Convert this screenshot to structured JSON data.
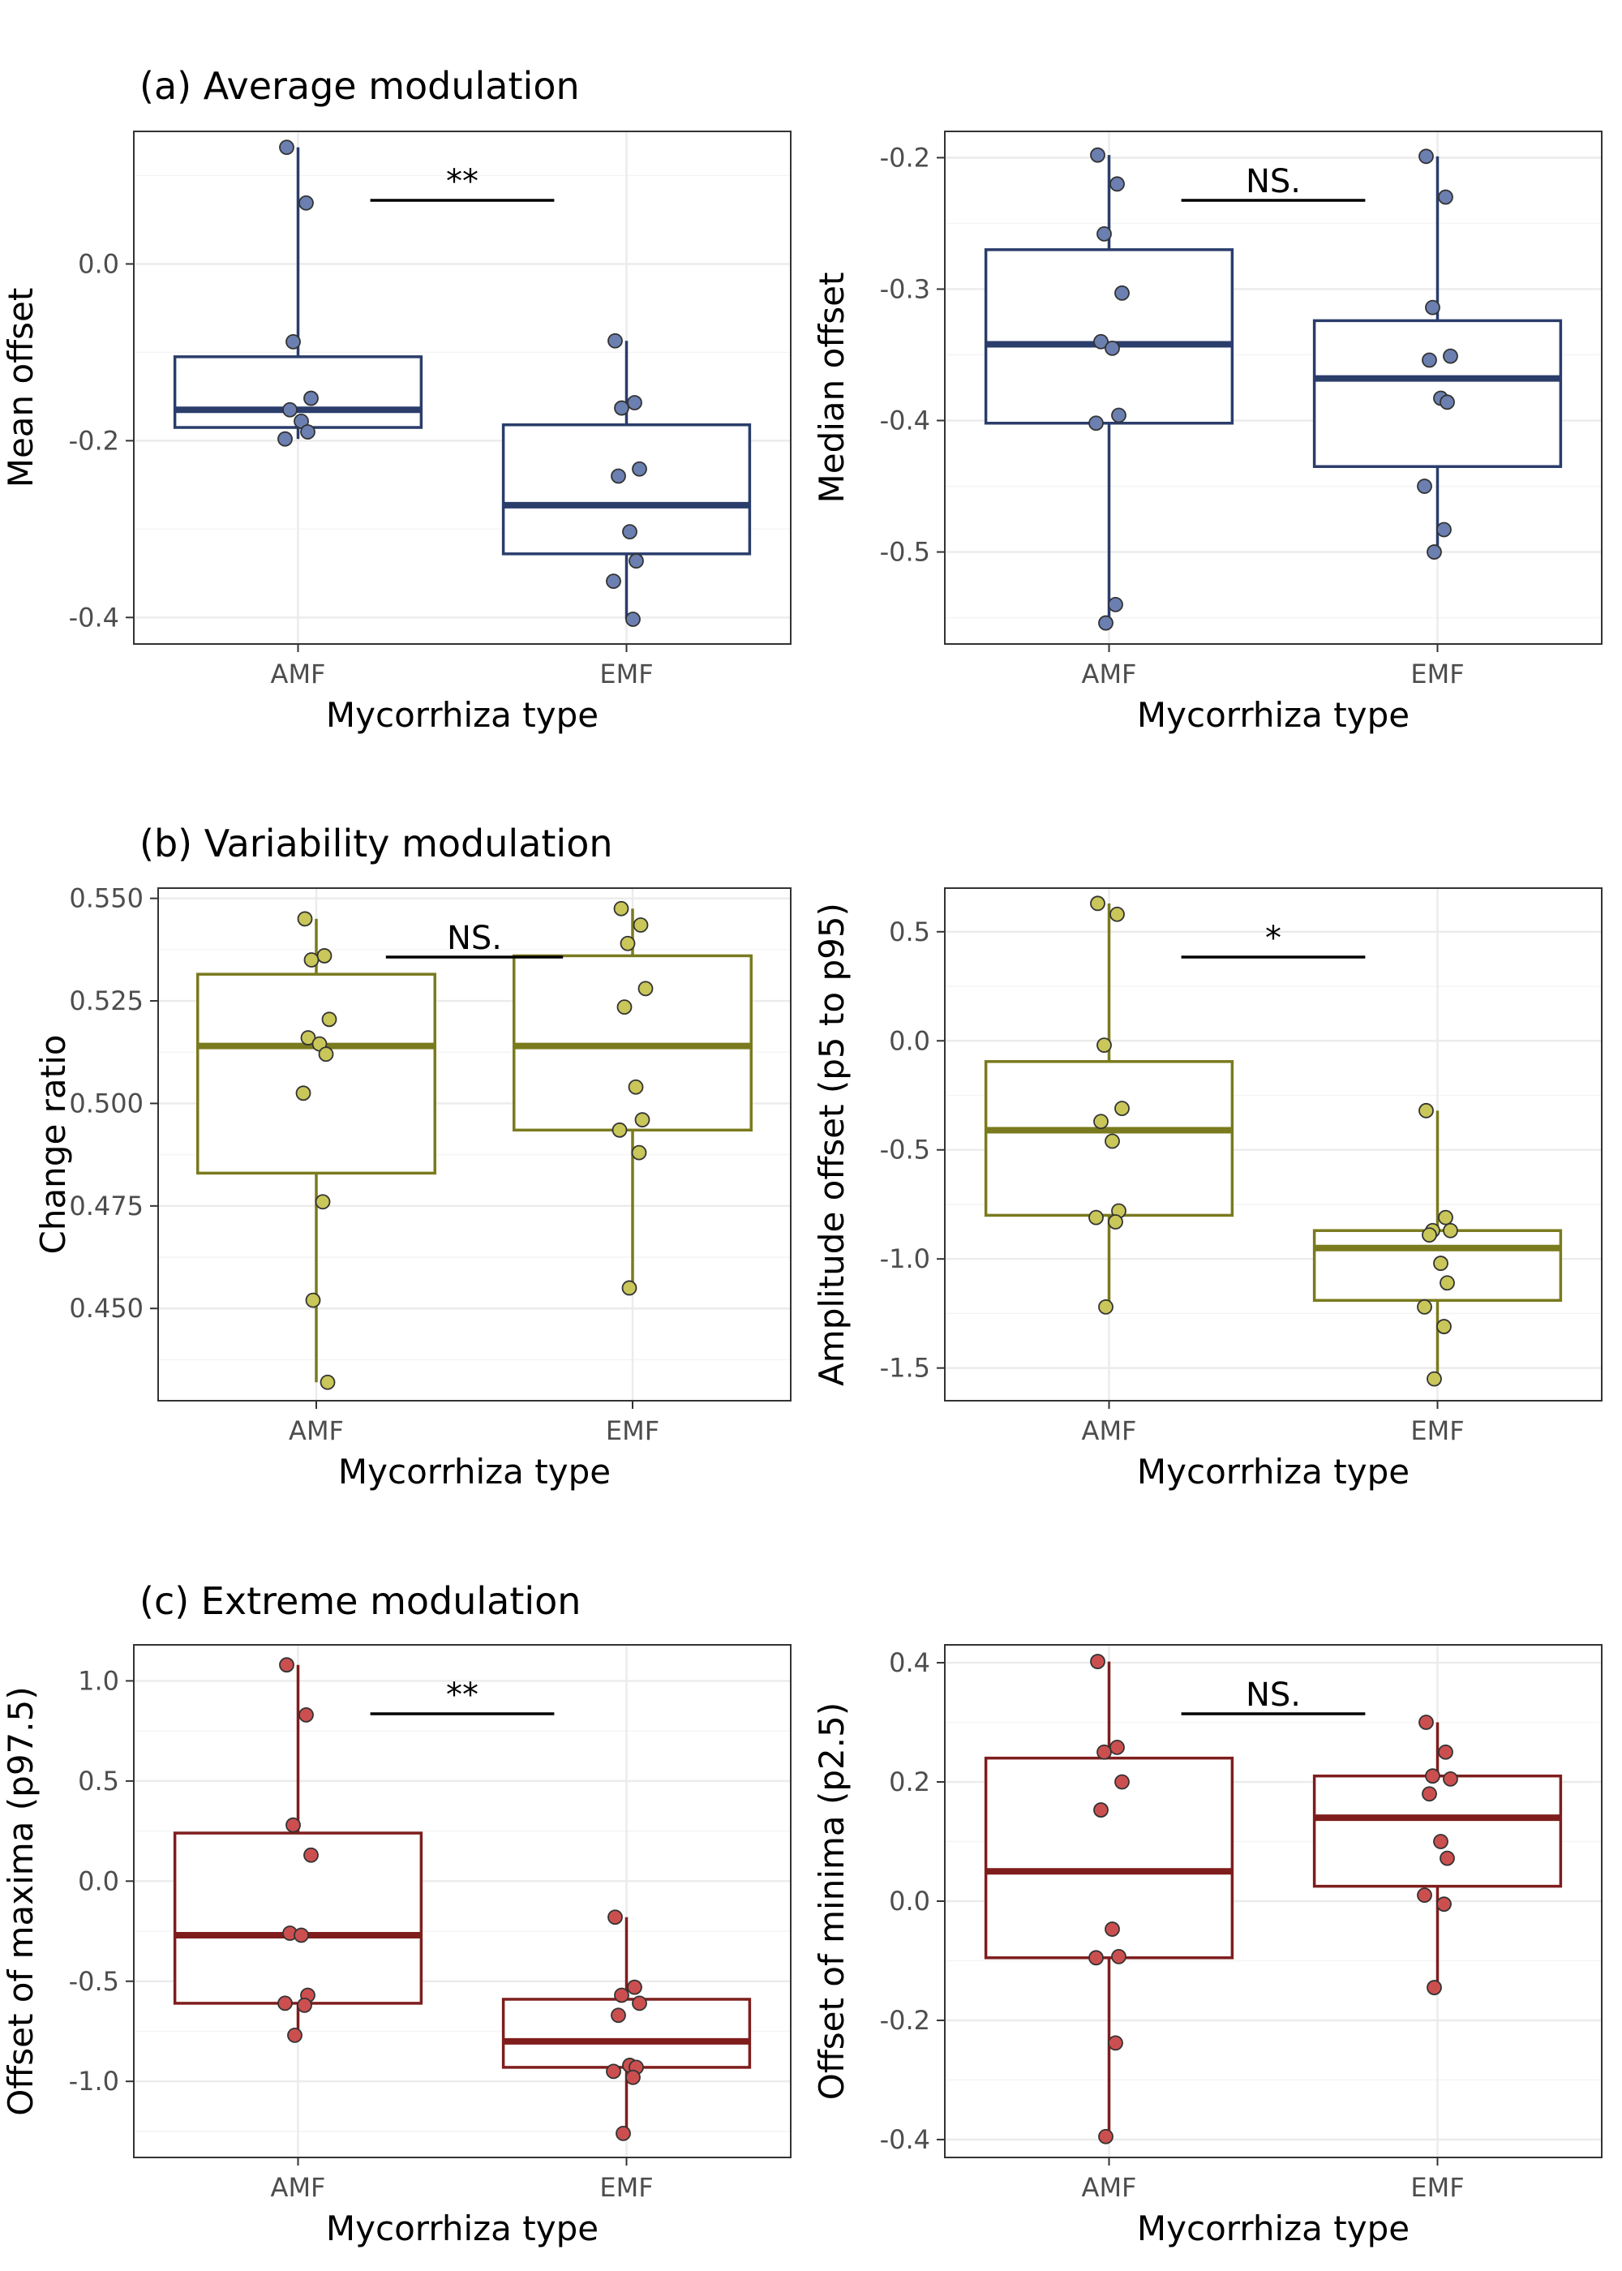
{
  "sections": [
    {
      "title": "(a) Average modulation"
    },
    {
      "title": "(b) Variability modulation"
    },
    {
      "title": "(c) Extreme modulation"
    }
  ],
  "colors": {
    "section_a": {
      "line": "#2a3d6b",
      "point": "#6b7fb0"
    },
    "section_b": {
      "line": "#7a7a1e",
      "point": "#c9c65a"
    },
    "section_c": {
      "line": "#7f1d1d",
      "point": "#cc4f4f"
    }
  },
  "chart_data": [
    {
      "type": "box",
      "section": 0,
      "xlabel": "Mycorrhiza type",
      "ylabel": "Mean offset",
      "categories": [
        "AMF",
        "EMF"
      ],
      "ylim": [
        -0.43,
        0.15
      ],
      "yticks": [
        0.0,
        -0.2,
        -0.4
      ],
      "ytick_labels": [
        "0.0",
        "-0.2",
        "-0.4"
      ],
      "grid": true,
      "significance": "**",
      "groups": [
        {
          "name": "AMF",
          "q1": -0.185,
          "median": -0.165,
          "q3": -0.105,
          "whisker_low": -0.198,
          "whisker_high": 0.132,
          "points": [
            0.132,
            0.069,
            -0.088,
            -0.152,
            -0.165,
            -0.178,
            -0.19,
            -0.198
          ]
        },
        {
          "name": "EMF",
          "q1": -0.328,
          "median": -0.273,
          "q3": -0.182,
          "whisker_low": -0.402,
          "whisker_high": -0.087,
          "points": [
            -0.087,
            -0.157,
            -0.163,
            -0.232,
            -0.24,
            -0.303,
            -0.336,
            -0.359,
            -0.402
          ]
        }
      ]
    },
    {
      "type": "box",
      "section": 0,
      "xlabel": "Mycorrhiza type",
      "ylabel": "Median offset",
      "categories": [
        "AMF",
        "EMF"
      ],
      "ylim": [
        -0.57,
        -0.18
      ],
      "yticks": [
        -0.2,
        -0.3,
        -0.4,
        -0.5
      ],
      "ytick_labels": [
        "-0.2",
        "-0.3",
        "-0.4",
        "-0.5"
      ],
      "grid": true,
      "significance": "NS.",
      "groups": [
        {
          "name": "AMF",
          "q1": -0.402,
          "median": -0.342,
          "q3": -0.27,
          "whisker_low": -0.554,
          "whisker_high": -0.198,
          "points": [
            -0.198,
            -0.22,
            -0.258,
            -0.303,
            -0.34,
            -0.345,
            -0.396,
            -0.402,
            -0.54,
            -0.554
          ]
        },
        {
          "name": "EMF",
          "q1": -0.435,
          "median": -0.368,
          "q3": -0.324,
          "whisker_low": -0.5,
          "whisker_high": -0.199,
          "points": [
            -0.199,
            -0.23,
            -0.314,
            -0.351,
            -0.354,
            -0.383,
            -0.386,
            -0.45,
            -0.483,
            -0.5
          ]
        }
      ]
    },
    {
      "type": "box",
      "section": 1,
      "xlabel": "Mycorrhiza type",
      "ylabel": "Change ratio",
      "categories": [
        "AMF",
        "EMF"
      ],
      "ylim": [
        0.4275,
        0.5525
      ],
      "yticks": [
        0.55,
        0.525,
        0.5,
        0.475,
        0.45
      ],
      "ytick_labels": [
        "0.550",
        "0.525",
        "0.500",
        "0.475",
        "0.450"
      ],
      "grid": true,
      "significance": "NS.",
      "groups": [
        {
          "name": "AMF",
          "q1": 0.483,
          "median": 0.514,
          "q3": 0.5315,
          "whisker_low": 0.432,
          "whisker_high": 0.545,
          "points": [
            0.545,
            0.536,
            0.535,
            0.5205,
            0.516,
            0.5145,
            0.512,
            0.5025,
            0.476,
            0.452,
            0.432
          ]
        },
        {
          "name": "EMF",
          "q1": 0.4935,
          "median": 0.514,
          "q3": 0.536,
          "whisker_low": 0.455,
          "whisker_high": 0.5475,
          "points": [
            0.5475,
            0.5435,
            0.539,
            0.528,
            0.5235,
            0.504,
            0.496,
            0.4935,
            0.488,
            0.455
          ]
        }
      ]
    },
    {
      "type": "box",
      "section": 1,
      "xlabel": "Mycorrhiza type",
      "ylabel": "Amplitude offset (p5 to p95)",
      "categories": [
        "AMF",
        "EMF"
      ],
      "ylim": [
        -1.65,
        0.7
      ],
      "yticks": [
        0.5,
        0.0,
        -0.5,
        -1.0,
        -1.5
      ],
      "ytick_labels": [
        "0.5",
        "0.0",
        "-0.5",
        "-1.0",
        "-1.5"
      ],
      "grid": true,
      "significance": "*",
      "groups": [
        {
          "name": "AMF",
          "q1": -0.8,
          "median": -0.41,
          "q3": -0.095,
          "whisker_low": -1.22,
          "whisker_high": 0.63,
          "points": [
            0.63,
            0.58,
            -0.02,
            -0.31,
            -0.37,
            -0.46,
            -0.78,
            -0.81,
            -0.83,
            -1.22
          ]
        },
        {
          "name": "EMF",
          "q1": -1.19,
          "median": -0.95,
          "q3": -0.87,
          "whisker_low": -1.55,
          "whisker_high": -0.32,
          "points": [
            -0.32,
            -0.81,
            -0.87,
            -0.87,
            -0.89,
            -1.02,
            -1.11,
            -1.22,
            -1.31,
            -1.55
          ]
        }
      ]
    },
    {
      "type": "box",
      "section": 2,
      "xlabel": "Mycorrhiza type",
      "ylabel": "Offset of maxima (p97.5)",
      "categories": [
        "AMF",
        "EMF"
      ],
      "ylim": [
        -1.38,
        1.18
      ],
      "yticks": [
        1.0,
        0.5,
        0.0,
        -0.5,
        -1.0
      ],
      "ytick_labels": [
        "1.0",
        "0.5",
        "0.0",
        "-0.5",
        "-1.0"
      ],
      "grid": true,
      "significance": "**",
      "groups": [
        {
          "name": "AMF",
          "q1": -0.61,
          "median": -0.27,
          "q3": 0.24,
          "whisker_low": -0.77,
          "whisker_high": 1.08,
          "points": [
            1.08,
            0.83,
            0.28,
            0.13,
            -0.26,
            -0.27,
            -0.57,
            -0.61,
            -0.62,
            -0.77
          ]
        },
        {
          "name": "EMF",
          "q1": -0.93,
          "median": -0.8,
          "q3": -0.59,
          "whisker_low": -1.26,
          "whisker_high": -0.18,
          "points": [
            -0.18,
            -0.53,
            -0.57,
            -0.61,
            -0.67,
            -0.92,
            -0.93,
            -0.95,
            -0.98,
            -1.26
          ]
        }
      ]
    },
    {
      "type": "box",
      "section": 2,
      "xlabel": "Mycorrhiza type",
      "ylabel": "Offset of minima (p2.5)",
      "categories": [
        "AMF",
        "EMF"
      ],
      "ylim": [
        -0.43,
        0.43
      ],
      "yticks": [
        0.4,
        0.2,
        0.0,
        -0.2,
        -0.4
      ],
      "ytick_labels": [
        "0.4",
        "0.2",
        "0.0",
        "-0.2",
        "-0.4"
      ],
      "grid": true,
      "significance": "NS.",
      "groups": [
        {
          "name": "AMF",
          "q1": -0.095,
          "median": 0.05,
          "q3": 0.24,
          "whisker_low": -0.395,
          "whisker_high": 0.402,
          "points": [
            0.402,
            0.258,
            0.25,
            0.2,
            0.153,
            -0.047,
            -0.093,
            -0.095,
            -0.238,
            -0.395
          ]
        },
        {
          "name": "EMF",
          "q1": 0.025,
          "median": 0.14,
          "q3": 0.21,
          "whisker_low": -0.145,
          "whisker_high": 0.3,
          "points": [
            0.3,
            0.25,
            0.21,
            0.205,
            0.18,
            0.1,
            0.072,
            0.01,
            -0.005,
            -0.145
          ]
        }
      ]
    }
  ]
}
